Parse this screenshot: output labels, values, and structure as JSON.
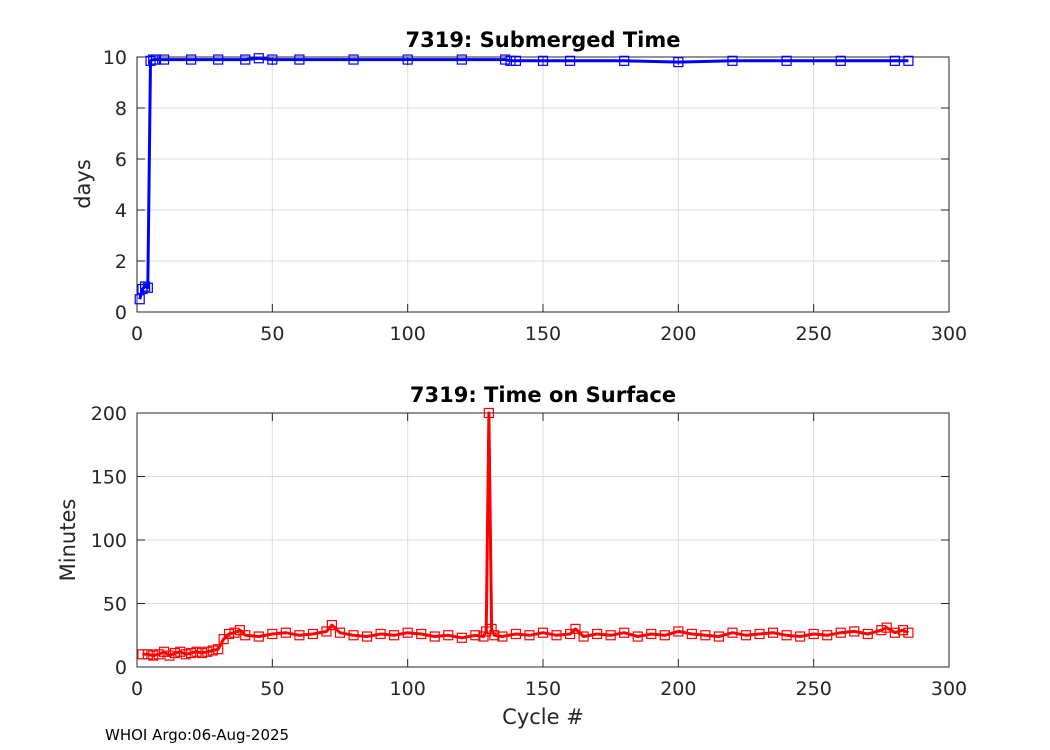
{
  "footer": "WHOI Argo:06-Aug-2025",
  "chart_data": [
    {
      "type": "line",
      "title": "7319: Submerged Time",
      "xlabel": "",
      "ylabel": "days",
      "xlim": [
        0,
        300
      ],
      "ylim": [
        0,
        10
      ],
      "xticks": [
        0,
        50,
        100,
        150,
        200,
        250,
        300
      ],
      "yticks": [
        0,
        2,
        4,
        6,
        8,
        10
      ],
      "grid": true,
      "marker": "square",
      "color": "#0000ff",
      "series": [
        {
          "x": [
            1,
            2,
            3,
            4,
            5,
            6,
            7,
            10,
            20,
            30,
            40,
            45,
            50,
            60,
            80,
            100,
            120,
            136,
            138,
            140,
            150,
            160,
            180,
            200,
            220,
            240,
            260,
            280,
            285
          ],
          "y": [
            0.5,
            0.9,
            1.0,
            0.95,
            9.85,
            9.9,
            9.9,
            9.9,
            9.9,
            9.9,
            9.9,
            9.95,
            9.9,
            9.9,
            9.9,
            9.9,
            9.9,
            9.9,
            9.85,
            9.85,
            9.85,
            9.85,
            9.85,
            9.8,
            9.85,
            9.85,
            9.85,
            9.85,
            9.85
          ]
        }
      ]
    },
    {
      "type": "line",
      "title": "7319: Time on Surface",
      "xlabel": "Cycle #",
      "ylabel": "Minutes",
      "xlim": [
        0,
        300
      ],
      "ylim": [
        0,
        200
      ],
      "xticks": [
        0,
        50,
        100,
        150,
        200,
        250,
        300
      ],
      "yticks": [
        0,
        50,
        100,
        150,
        200
      ],
      "grid": true,
      "marker": "square",
      "color": "#ff0000",
      "series": [
        {
          "x": [
            2,
            4,
            6,
            8,
            10,
            12,
            14,
            16,
            18,
            20,
            22,
            24,
            26,
            28,
            30,
            32,
            34,
            36,
            38,
            40,
            45,
            50,
            55,
            60,
            65,
            70,
            72,
            75,
            80,
            85,
            90,
            95,
            100,
            105,
            110,
            115,
            120,
            125,
            128,
            129,
            130,
            131,
            132,
            135,
            140,
            145,
            150,
            155,
            160,
            162,
            165,
            170,
            175,
            180,
            185,
            190,
            195,
            200,
            205,
            210,
            215,
            220,
            225,
            230,
            235,
            240,
            245,
            250,
            255,
            260,
            265,
            270,
            275,
            277,
            280,
            283,
            285
          ],
          "y": [
            10,
            10,
            9,
            10,
            12,
            9,
            11,
            12,
            10,
            11,
            12,
            11,
            12,
            13,
            14,
            22,
            26,
            27,
            29,
            25,
            24,
            26,
            27,
            25,
            26,
            28,
            33,
            27,
            25,
            24,
            26,
            25,
            27,
            26,
            24,
            25,
            23,
            25,
            24,
            28,
            200,
            30,
            25,
            24,
            26,
            25,
            27,
            25,
            26,
            30,
            24,
            26,
            25,
            27,
            24,
            26,
            25,
            28,
            26,
            25,
            24,
            27,
            25,
            26,
            27,
            25,
            24,
            26,
            25,
            27,
            28,
            26,
            29,
            31,
            27,
            29,
            27
          ]
        }
      ]
    }
  ]
}
